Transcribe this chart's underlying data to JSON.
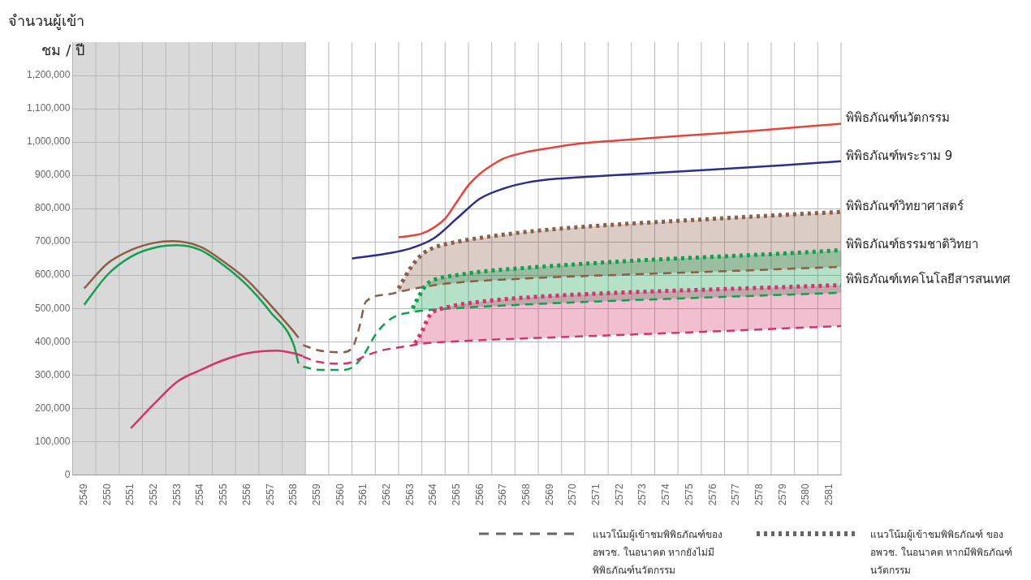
{
  "chart_data": {
    "type": "line",
    "ylabel": "จำนวนผู้เข้าชม / ปี",
    "xlim": [
      2548.5,
      2581.5
    ],
    "xticks": [
      2549,
      2550,
      2551,
      2552,
      2553,
      2554,
      2555,
      2556,
      2557,
      2558,
      2559,
      2560,
      2561,
      2562,
      2563,
      2564,
      2565,
      2566,
      2567,
      2568,
      2569,
      2570,
      2571,
      2572,
      2573,
      2574,
      2575,
      2576,
      2577,
      2578,
      2579,
      2580,
      2581
    ],
    "ylim": [
      0,
      1300000
    ],
    "yticks": [
      0,
      {
        "value": 100000,
        "label": "100,000"
      },
      {
        "value": 200000,
        "label": "200,000"
      },
      {
        "value": 300000,
        "label": "300,000"
      },
      {
        "value": 400000,
        "label": "400,000"
      },
      {
        "value": 500000,
        "label": "500,000"
      },
      {
        "value": 600000,
        "label": "600,000"
      },
      {
        "value": 700000,
        "label": "700,000"
      },
      {
        "value": 800000,
        "label": "800,000"
      },
      {
        "value": 900000,
        "label": "900,000"
      },
      {
        "value": 1000000,
        "label": "1,000,000"
      },
      {
        "value": 1100000,
        "label": "1,100,000"
      },
      {
        "value": 1200000,
        "label": "1,200,000"
      }
    ],
    "grid": true,
    "bands": [
      {
        "axis": "x",
        "from": 2548.5,
        "to": 2558.5,
        "color": "#d9d9d9"
      }
    ],
    "series": [
      {
        "color": "#8b5e45",
        "line_style": "solid",
        "x": [
          2549,
          2550,
          2551,
          2552,
          2552.8,
          2554,
          2555,
          2556,
          2557,
          2558,
          2558.2
        ],
        "values": [
          560000,
          635000,
          675000,
          697000,
          702000,
          685000,
          640000,
          585000,
          510000,
          430000,
          412000
        ]
      },
      {
        "color": "#10a050",
        "line_style": "solid",
        "x": [
          2549,
          2550,
          2551,
          2552,
          2553,
          2554,
          2555,
          2556,
          2557,
          2558,
          2558.2
        ],
        "values": [
          511000,
          601000,
          655000,
          682000,
          690000,
          675000,
          629000,
          569000,
          489000,
          390000,
          334000
        ]
      },
      {
        "color": "#d6336c",
        "line_style": "solid",
        "x": [
          2551,
          2552,
          2553,
          2554,
          2555,
          2556,
          2557.3,
          2558,
          2558.4
        ],
        "values": [
          140000,
          213000,
          280000,
          315000,
          345000,
          365000,
          373000,
          365000,
          357000
        ]
      },
      {
        "color": "#8b5e45",
        "line_style": "dashed",
        "x": [
          2558.4,
          2559,
          2560,
          2560.5,
          2560.8,
          2561.1,
          2562,
          2563,
          2564.5,
          2568,
          2572,
          2577,
          2581.5
        ],
        "values": [
          390000,
          375000,
          368000,
          380000,
          440000,
          520000,
          542000,
          557000,
          574000,
          590000,
          601000,
          613000,
          625000
        ]
      },
      {
        "color": "#10a050",
        "line_style": "dashed",
        "x": [
          2558.4,
          2559,
          2560,
          2560.5,
          2561,
          2561.5,
          2562,
          2562.5,
          2563,
          2563.5,
          2564,
          2566,
          2570,
          2575,
          2581.5
        ],
        "values": [
          325000,
          316000,
          315000,
          322000,
          360000,
          420000,
          460000,
          480000,
          488000,
          493000,
          496000,
          505000,
          518000,
          531000,
          547000
        ]
      },
      {
        "color": "#d6336c",
        "line_style": "dashed",
        "x": [
          2558.4,
          2559,
          2560,
          2560.5,
          2561,
          2561.5,
          2562,
          2563,
          2563.5,
          2565,
          2570,
          2575,
          2581.5
        ],
        "values": [
          355000,
          340000,
          334000,
          338000,
          355000,
          368000,
          377000,
          388000,
          394000,
          401000,
          415000,
          428000,
          447000
        ]
      },
      {
        "name": "พิพิธภัณฑ์นวัตกรรม",
        "color": "#e8433a",
        "line_style": "solid",
        "x": [
          2562.5,
          2563,
          2563.5,
          2564,
          2564.5,
          2565,
          2565.5,
          2566,
          2566.5,
          2567,
          2568,
          2569,
          2570,
          2572,
          2575,
          2578,
          2581.5
        ],
        "values": [
          714000,
          718000,
          725000,
          742000,
          770000,
          820000,
          870000,
          905000,
          930000,
          950000,
          970000,
          982000,
          993000,
          1005000,
          1020000,
          1035000,
          1055000
        ]
      },
      {
        "name": "พิพิธภัณฑ์พระราม 9",
        "color": "#2b2f8c",
        "line_style": "solid",
        "x": [
          2560.5,
          2562,
          2563,
          2564,
          2565,
          2566,
          2567,
          2568,
          2569,
          2570,
          2573,
          2576,
          2579,
          2581.5
        ],
        "values": [
          650000,
          665000,
          680000,
          710000,
          770000,
          830000,
          860000,
          878000,
          888000,
          893000,
          905000,
          917000,
          930000,
          942000
        ]
      },
      {
        "name": "พิพิธภัณฑ์วิทยาศาสตร์",
        "color": "#8b5e45",
        "line_style": "dotted",
        "x": [
          2562.5,
          2563,
          2563.5,
          2564,
          2565,
          2566,
          2568,
          2570,
          2573,
          2576,
          2579,
          2581.5
        ],
        "values": [
          560000,
          620000,
          662000,
          682000,
          700000,
          712000,
          730000,
          743000,
          757000,
          769000,
          781000,
          790000
        ],
        "upper": [
          560000,
          620000,
          662000,
          682000,
          700000,
          712000,
          730000,
          743000,
          757000,
          769000,
          781000,
          790000
        ],
        "lower": [
          550000,
          557000,
          563000,
          569000,
          577000,
          582000,
          590000,
          596000,
          604000,
          611000,
          618000,
          625000
        ]
      },
      {
        "name": "พิพิธภัณฑ์ธรรมชาติวิทยา",
        "color": "#10a050",
        "line_style": "dotted",
        "x": [
          2563.1,
          2563.4,
          2563.7,
          2564,
          2565,
          2566,
          2568,
          2570,
          2573,
          2576,
          2579,
          2581.5
        ],
        "values": [
          500000,
          540000,
          572000,
          585000,
          600000,
          610000,
          622000,
          632000,
          645000,
          655000,
          665000,
          675000
        ],
        "upper": [
          500000,
          540000,
          572000,
          585000,
          600000,
          610000,
          622000,
          632000,
          645000,
          655000,
          665000,
          675000
        ],
        "lower": [
          489000,
          492000,
          494000,
          496000,
          500000,
          505000,
          511000,
          518000,
          526000,
          533000,
          540000,
          547000
        ]
      },
      {
        "name": "พิพิธภัณฑ์เทคโนโลยีสารสนเทศ",
        "color": "#d6336c",
        "line_style": "dotted",
        "x": [
          2563.2,
          2563.5,
          2563.8,
          2564,
          2564.5,
          2565,
          2566,
          2568,
          2570,
          2573,
          2576,
          2579,
          2581.5
        ],
        "values": [
          395000,
          430000,
          475000,
          490000,
          502000,
          510000,
          520000,
          533000,
          541000,
          550000,
          557000,
          564000,
          570000
        ],
        "upper": [
          395000,
          430000,
          475000,
          490000,
          502000,
          510000,
          520000,
          533000,
          541000,
          550000,
          557000,
          564000,
          570000
        ],
        "lower": [
          390000,
          394000,
          395000,
          396000,
          399000,
          401000,
          404000,
          409000,
          415000,
          423000,
          431000,
          439000,
          447000
        ]
      }
    ],
    "annotations": [
      "แนวโน้มผู้เข้าชมพิพิธภัณฑ์ของ อพวช. ในอนาคต หากยังไม่มีพิพิธภัณฑ์นวัตกรรม",
      "แนวโน้มผู้เข้าชมพิพิธภัณฑ์ ของ อพวช. ในอนาคต หากมีพิพิธภัณฑ์นวัตกรรม"
    ]
  }
}
